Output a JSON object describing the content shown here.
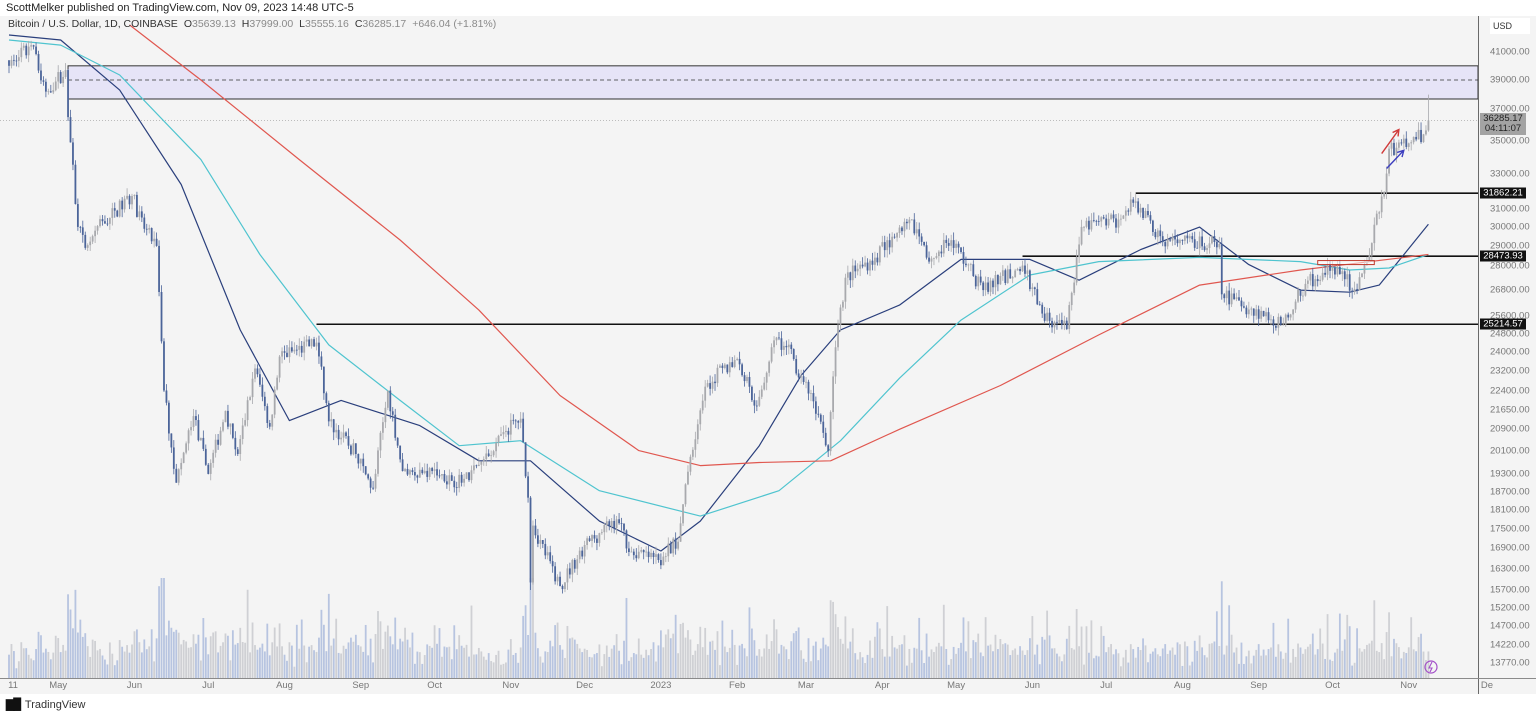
{
  "publisher_line": "ScottMelker published on TradingView.com, Nov 09, 2023 14:48 UTC-5",
  "legend": {
    "symbol": "Bitcoin / U.S. Dollar, 1D, COINBASE",
    "o_label": "O",
    "o": "35639.13",
    "h_label": "H",
    "h": "37999.00",
    "l_label": "L",
    "l": "35555.16",
    "c_label": "C",
    "c": "36285.17",
    "change": "+646.04 (+1.81%)"
  },
  "currency": "USD",
  "footer": {
    "logo": "TV",
    "brand": "TradingView"
  },
  "colors": {
    "up": "#a8a9ad",
    "down": "#4b6499",
    "ma_fast": "#2a3f7c",
    "ma_mid": "#4fc4cf",
    "ma_slow": "#e0574f",
    "zone": "#e6e4f7"
  },
  "chart_data": {
    "type": "candlestick",
    "title": "Bitcoin / U.S. Dollar, 1D, COINBASE",
    "scale": "log",
    "start_date": "2022-04-11",
    "end_date": "2023-11-09",
    "y_ticks": [
      "41000.00",
      "39000.00",
      "37000.00",
      "35000.00",
      "33000.00",
      "31000.00",
      "30000.00",
      "29000.00",
      "28000.00",
      "26800.00",
      "25600.00",
      "24800.00",
      "24000.00",
      "23200.00",
      "22400.00",
      "21650.00",
      "20900.00",
      "20100.00",
      "19300.00",
      "18700.00",
      "18100.00",
      "17500.00",
      "16900.00",
      "16300.00",
      "15700.00",
      "15200.00",
      "14700.00",
      "14220.00",
      "13770.00"
    ],
    "x_ticks": [
      {
        "label": "11",
        "date": "2022-04-11"
      },
      {
        "label": "May",
        "date": "2022-05-01"
      },
      {
        "label": "Jun",
        "date": "2022-06-01"
      },
      {
        "label": "Jul",
        "date": "2022-07-01"
      },
      {
        "label": "Aug",
        "date": "2022-08-01"
      },
      {
        "label": "Sep",
        "date": "2022-09-01"
      },
      {
        "label": "Oct",
        "date": "2022-10-01"
      },
      {
        "label": "Nov",
        "date": "2022-11-01"
      },
      {
        "label": "Dec",
        "date": "2022-12-01"
      },
      {
        "label": "2023",
        "date": "2023-01-01"
      },
      {
        "label": "Feb",
        "date": "2023-02-01"
      },
      {
        "label": "Mar",
        "date": "2023-03-01"
      },
      {
        "label": "Apr",
        "date": "2023-04-01"
      },
      {
        "label": "May",
        "date": "2023-05-01"
      },
      {
        "label": "Jun",
        "date": "2023-06-01"
      },
      {
        "label": "Jul",
        "date": "2023-07-01"
      },
      {
        "label": "Aug",
        "date": "2023-08-01"
      },
      {
        "label": "Sep",
        "date": "2023-09-01"
      },
      {
        "label": "Oct",
        "date": "2023-10-01"
      },
      {
        "label": "Nov",
        "date": "2023-11-01"
      },
      {
        "label": "De",
        "date": "2023-12-01"
      }
    ],
    "close_path": [
      [
        "2022-04-11",
        40000
      ],
      [
        "2022-04-20",
        41500
      ],
      [
        "2022-04-26",
        38200
      ],
      [
        "2022-05-04",
        39700
      ],
      [
        "2022-05-05",
        36500
      ],
      [
        "2022-05-09",
        30000
      ],
      [
        "2022-05-12",
        28900
      ],
      [
        "2022-05-16",
        29800
      ],
      [
        "2022-05-31",
        31700
      ],
      [
        "2022-06-05",
        29900
      ],
      [
        "2022-06-10",
        29000
      ],
      [
        "2022-06-13",
        22400
      ],
      [
        "2022-06-18",
        19000
      ],
      [
        "2022-06-25",
        21400
      ],
      [
        "2022-07-01",
        19300
      ],
      [
        "2022-07-08",
        21600
      ],
      [
        "2022-07-13",
        20000
      ],
      [
        "2022-07-20",
        23300
      ],
      [
        "2022-07-26",
        21000
      ],
      [
        "2022-07-30",
        23800
      ],
      [
        "2022-08-14",
        24400
      ],
      [
        "2022-08-19",
        21200
      ],
      [
        "2022-08-30",
        20000
      ],
      [
        "2022-09-06",
        18800
      ],
      [
        "2022-09-12",
        22400
      ],
      [
        "2022-09-18",
        19400
      ],
      [
        "2022-09-30",
        19400
      ],
      [
        "2022-10-12",
        19000
      ],
      [
        "2022-10-25",
        20100
      ],
      [
        "2022-10-29",
        20800
      ],
      [
        "2022-11-05",
        21300
      ],
      [
        "2022-11-08",
        18500
      ],
      [
        "2022-11-09",
        15900
      ],
      [
        "2022-11-10",
        17600
      ],
      [
        "2022-11-21",
        15800
      ],
      [
        "2022-12-01",
        17000
      ],
      [
        "2022-12-14",
        17800
      ],
      [
        "2022-12-20",
        16800
      ],
      [
        "2022-12-31",
        16550
      ],
      [
        "2023-01-08",
        17100
      ],
      [
        "2023-01-13",
        19900
      ],
      [
        "2023-01-20",
        22700
      ],
      [
        "2023-02-01",
        23700
      ],
      [
        "2023-02-09",
        21800
      ],
      [
        "2023-02-16",
        24500
      ],
      [
        "2023-02-21",
        24200
      ],
      [
        "2023-03-03",
        22300
      ],
      [
        "2023-03-10",
        20100
      ],
      [
        "2023-03-13",
        24200
      ],
      [
        "2023-03-17",
        27400
      ],
      [
        "2023-03-29",
        28400
      ],
      [
        "2023-04-11",
        30200
      ],
      [
        "2023-04-13",
        30400
      ],
      [
        "2023-04-20",
        28200
      ],
      [
        "2023-04-29",
        29300
      ],
      [
        "2023-05-12",
        26800
      ],
      [
        "2023-05-28",
        28000
      ],
      [
        "2023-06-05",
        25700
      ],
      [
        "2023-06-15",
        25000
      ],
      [
        "2023-06-21",
        30000
      ],
      [
        "2023-07-06",
        30400
      ],
      [
        "2023-07-13",
        31400
      ],
      [
        "2023-07-24",
        29200
      ],
      [
        "2023-08-16",
        29100
      ],
      [
        "2023-08-17",
        26600
      ],
      [
        "2023-09-11",
        25200
      ],
      [
        "2023-09-20",
        27100
      ],
      [
        "2023-10-01",
        27900
      ],
      [
        "2023-10-11",
        26800
      ],
      [
        "2023-10-16",
        28500
      ],
      [
        "2023-10-23",
        33000
      ],
      [
        "2023-10-24",
        34500
      ],
      [
        "2023-11-02",
        34900
      ],
      [
        "2023-11-08",
        35639.13
      ],
      [
        "2023-11-09",
        36285.17
      ]
    ],
    "last_candle": {
      "open": 35639.13,
      "high": 37999.0,
      "low": 35555.16,
      "close": 36285.17
    },
    "moving_averages": [
      {
        "name": "ma_fast",
        "color_key": "ma_fast",
        "points": [
          [
            "2022-04-11",
            42260
          ],
          [
            "2022-05-02",
            41890
          ],
          [
            "2022-05-26",
            38300
          ],
          [
            "2022-06-20",
            32360
          ],
          [
            "2022-07-14",
            24960
          ],
          [
            "2022-08-03",
            21230
          ],
          [
            "2022-08-24",
            22010
          ],
          [
            "2022-09-25",
            21040
          ],
          [
            "2022-10-19",
            19760
          ],
          [
            "2022-11-09",
            19760
          ],
          [
            "2022-12-07",
            17740
          ],
          [
            "2023-01-01",
            16820
          ],
          [
            "2023-01-17",
            17740
          ],
          [
            "2023-02-10",
            20300
          ],
          [
            "2023-02-27",
            23010
          ],
          [
            "2023-03-15",
            24960
          ],
          [
            "2023-04-08",
            26090
          ],
          [
            "2023-05-03",
            28310
          ],
          [
            "2023-05-31",
            28310
          ],
          [
            "2023-06-20",
            27280
          ],
          [
            "2023-07-15",
            28810
          ],
          [
            "2023-08-08",
            29990
          ],
          [
            "2023-08-28",
            28050
          ],
          [
            "2023-09-18",
            26800
          ],
          [
            "2023-10-08",
            26700
          ],
          [
            "2023-10-20",
            27040
          ],
          [
            "2023-11-09",
            30140
          ]
        ]
      },
      {
        "name": "ma_mid",
        "color_key": "ma_mid",
        "points": [
          [
            "2022-04-11",
            41890
          ],
          [
            "2022-05-02",
            41510
          ],
          [
            "2022-05-26",
            39350
          ],
          [
            "2022-06-28",
            33830
          ],
          [
            "2022-07-22",
            28560
          ],
          [
            "2022-08-19",
            24300
          ],
          [
            "2022-09-17",
            22010
          ],
          [
            "2022-10-11",
            20300
          ],
          [
            "2022-11-05",
            20480
          ],
          [
            "2022-12-07",
            18730
          ],
          [
            "2023-01-17",
            17900
          ],
          [
            "2023-02-18",
            18730
          ],
          [
            "2023-03-15",
            20480
          ],
          [
            "2023-04-08",
            22900
          ],
          [
            "2023-05-03",
            25400
          ],
          [
            "2023-05-31",
            27530
          ],
          [
            "2023-06-28",
            28200
          ],
          [
            "2023-08-08",
            28410
          ],
          [
            "2023-09-18",
            28200
          ],
          [
            "2023-10-08",
            27780
          ],
          [
            "2023-10-24",
            27880
          ],
          [
            "2023-11-09",
            28560
          ]
        ]
      },
      {
        "name": "ma_slow",
        "color_key": "ma_slow",
        "points": [
          [
            "2022-05-30",
            43030
          ],
          [
            "2022-06-28",
            39000
          ],
          [
            "2022-08-07",
            33830
          ],
          [
            "2022-09-17",
            29310
          ],
          [
            "2022-10-19",
            25860
          ],
          [
            "2022-11-21",
            22200
          ],
          [
            "2022-12-23",
            20120
          ],
          [
            "2023-01-17",
            19590
          ],
          [
            "2023-02-10",
            19700
          ],
          [
            "2023-03-11",
            19760
          ],
          [
            "2023-04-08",
            20900
          ],
          [
            "2023-05-19",
            22600
          ],
          [
            "2023-06-28",
            24740
          ],
          [
            "2023-08-08",
            27040
          ],
          [
            "2023-09-18",
            27780
          ],
          [
            "2023-11-09",
            28560
          ]
        ]
      }
    ],
    "resistance_zone": {
      "from_date": "2022-05-05",
      "top": 40000,
      "bottom": 37700,
      "midline": 39000
    },
    "horizontal_levels": [
      {
        "label": "31862.21",
        "price": 31862.21,
        "from_date": "2023-07-13"
      },
      {
        "label": "28473.93",
        "price": 28473.93,
        "from_date": "2023-05-28"
      },
      {
        "label": "25214.57",
        "price": 25214.57,
        "from_date": "2022-08-14"
      }
    ],
    "current_price": {
      "label": "36285.17",
      "countdown": "04:11:07",
      "price": 36285.17
    },
    "annotations": [
      {
        "type": "rectangle",
        "color": "#c0392b",
        "from_date": "2023-09-25",
        "to_date": "2023-10-18",
        "price": 28150
      },
      {
        "type": "arrow",
        "color": "#d03a3a",
        "from": [
          "2023-10-21",
          34200
        ],
        "to": [
          "2023-10-28",
          35700
        ]
      },
      {
        "type": "arrow",
        "color": "#3d3fbf",
        "from": [
          "2023-10-23",
          33300
        ],
        "to": [
          "2023-10-30",
          34400
        ]
      }
    ]
  }
}
